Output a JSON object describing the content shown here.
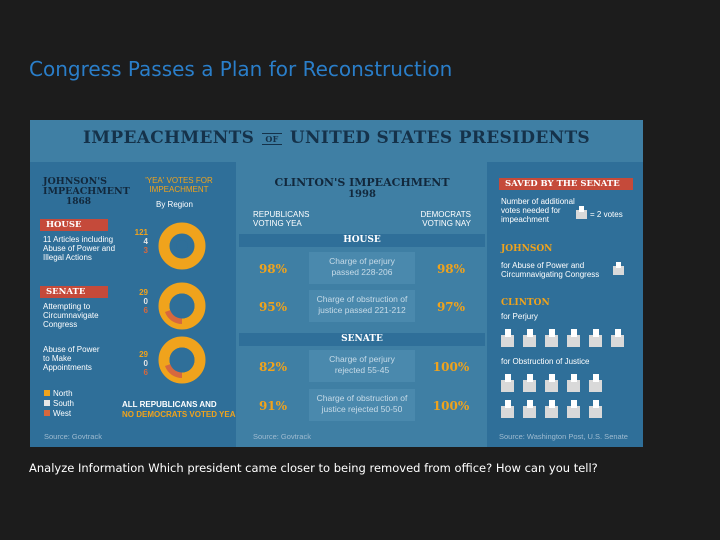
{
  "slide": {
    "title": "Congress Passes a Plan for Reconstruction",
    "caption": "Analyze Information Which president came closer to being removed from office? How can you tell?"
  },
  "infographic": {
    "title_left": "IMPEACHMENTS",
    "title_of": "OF",
    "title_right": "UNITED STATES PRESIDENTS",
    "johnson": {
      "heading_line1": "JOHNSON'S",
      "heading_line2": "IMPEACHMENT",
      "year": "1868",
      "votes_heading_line1": "'YEA' VOTES FOR",
      "votes_heading_line2": "IMPEACHMENT",
      "by_region": "By Region",
      "house_tag": "HOUSE",
      "house_text_1": "11 Articles including",
      "house_text_2": "Abuse of Power and",
      "house_text_3": "Illegal Actions",
      "house_votes": {
        "north": "121",
        "south": "4",
        "west": "3"
      },
      "senate_tag": "SENATE",
      "senate_text1_1": "Attempting to",
      "senate_text1_2": "Circumnavigate",
      "senate_text1_3": "Congress",
      "senate_votes1": {
        "north": "29",
        "south": "0",
        "west": "6"
      },
      "senate_text2_1": "Abuse of Power",
      "senate_text2_2": "to Make",
      "senate_text2_3": "Appointments",
      "senate_votes2": {
        "north": "29",
        "south": "0",
        "west": "6"
      },
      "legend_north": "North",
      "legend_south": "South",
      "legend_west": "West",
      "footnote_1": "ALL REPUBLICANS AND",
      "footnote_2": "NO DEMOCRATS VOTED YEA",
      "source": "Source: Govtrack"
    },
    "clinton": {
      "heading": "CLINTON'S IMPEACHMENT",
      "year": "1998",
      "rep_line1": "REPUBLICANS",
      "rep_line2": "VOTING YEA",
      "dem_line1": "DEMOCRATS",
      "dem_line2": "VOTING NAY",
      "house_band": "HOUSE",
      "senate_band": "SENATE",
      "rows": [
        {
          "rep": "98%",
          "line1": "Charge of perjury",
          "line2": "passed 228-206",
          "dem": "98%"
        },
        {
          "rep": "95%",
          "line1": "Charge of obstruction of",
          "line2": "justice passed 221-212",
          "dem": "97%"
        },
        {
          "rep": "82%",
          "line1": "Charge of perjury",
          "line2": "rejected 55-45",
          "dem": "100%"
        },
        {
          "rep": "91%",
          "line1": "Charge of obstruction of",
          "line2": "justice rejected 50-50",
          "dem": "100%"
        }
      ],
      "source": "Source: Govtrack"
    },
    "saved": {
      "tag": "SAVED BY THE SENATE",
      "legend_line1": "Number of additional",
      "legend_line2": "votes needed for",
      "legend_line3": "impeachment",
      "legend_value": "= 2 votes",
      "johnson_heading": "JOHNSON",
      "johnson_line1": "for Abuse of Power and",
      "johnson_line2": "Circumnavigating Congress",
      "clinton_heading": "CLINTON",
      "clinton_perjury": "for Perjury",
      "clinton_obstruction": "for Obstruction of Justice",
      "source": "Source: Washington Post, U.S. Senate"
    },
    "colors": {
      "north": "#f0a31c",
      "south": "#e6e6e6",
      "west": "#d7683e",
      "panel": "#2f6f99",
      "background": "#3f7fa4"
    }
  }
}
